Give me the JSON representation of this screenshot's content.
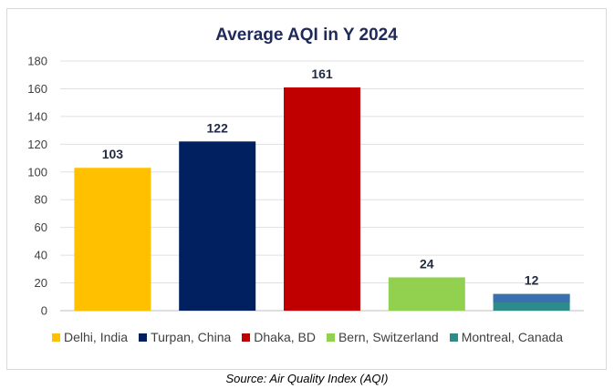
{
  "chart_data": {
    "type": "bar",
    "title": "Average AQI in Y 2024",
    "categories": [
      "Delhi, India",
      "Turpan, China",
      "Dhaka, BD",
      "Bern, Switzerland",
      "Montreal, Canada"
    ],
    "values": [
      103,
      122,
      161,
      24,
      12
    ],
    "colors": [
      "#ffc000",
      "#002060",
      "#c00000",
      "#92d050",
      "#2e8b8b"
    ],
    "ylim": [
      0,
      180
    ],
    "yticks": [
      "0",
      "20",
      "40",
      "60",
      "80",
      "100",
      "120",
      "140",
      "160",
      "180"
    ],
    "grid": true,
    "legend": "bottom",
    "xlabel": "",
    "ylabel": ""
  },
  "source_note": "Source: Air Quality Index (AQI)"
}
